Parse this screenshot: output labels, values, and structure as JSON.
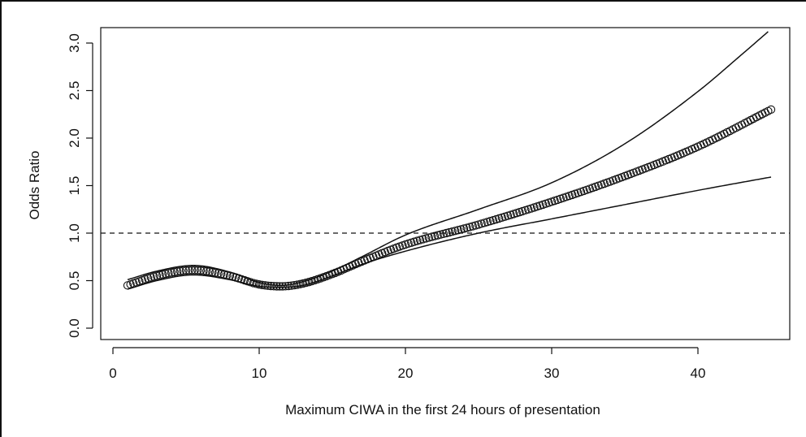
{
  "chart_data": {
    "type": "line",
    "xlabel": "Maximum CIWA in the first 24 hours of presentation",
    "ylabel": "Odds Ratio",
    "xlim": [
      0,
      46
    ],
    "ylim": [
      -0.05,
      3.1
    ],
    "x_ticks": [
      0,
      10,
      20,
      30,
      40
    ],
    "y_ticks": [
      0.0,
      0.5,
      1.0,
      1.5,
      2.0,
      2.5,
      3.0
    ],
    "x_tick_labels": [
      "0",
      "10",
      "20",
      "30",
      "40"
    ],
    "y_tick_labels": [
      "0.0",
      "0.5",
      "1.0",
      "1.5",
      "2.0",
      "2.5",
      "3.0"
    ],
    "reference_line": {
      "y": 1.0,
      "style": "dashed"
    },
    "estimate_knots": {
      "x": [
        1,
        3,
        5.5,
        8,
        10,
        11.5,
        13,
        15,
        17,
        20,
        25,
        30,
        35,
        40,
        45
      ],
      "y": [
        0.45,
        0.55,
        0.61,
        0.55,
        0.46,
        0.44,
        0.47,
        0.57,
        0.7,
        0.88,
        1.09,
        1.33,
        1.6,
        1.91,
        2.3
      ]
    },
    "upper_ci": {
      "x": [
        1,
        3,
        5.5,
        8,
        10,
        11.5,
        13,
        15,
        17,
        20,
        25,
        30,
        35,
        40,
        43,
        44.8
      ],
      "y": [
        0.51,
        0.6,
        0.66,
        0.59,
        0.48,
        0.45,
        0.49,
        0.6,
        0.75,
        0.98,
        1.25,
        1.53,
        1.94,
        2.49,
        2.88,
        3.12
      ]
    },
    "lower_ci": {
      "x": [
        1,
        3,
        5.5,
        8,
        10,
        11.5,
        13,
        15,
        17,
        20,
        25,
        30,
        35,
        40,
        45
      ],
      "y": [
        0.41,
        0.5,
        0.56,
        0.51,
        0.44,
        0.43,
        0.45,
        0.55,
        0.67,
        0.81,
        1.0,
        1.15,
        1.3,
        1.45,
        1.59
      ]
    },
    "marker": "circle",
    "colors": {
      "line": "#111111",
      "background": "#ffffff"
    }
  }
}
